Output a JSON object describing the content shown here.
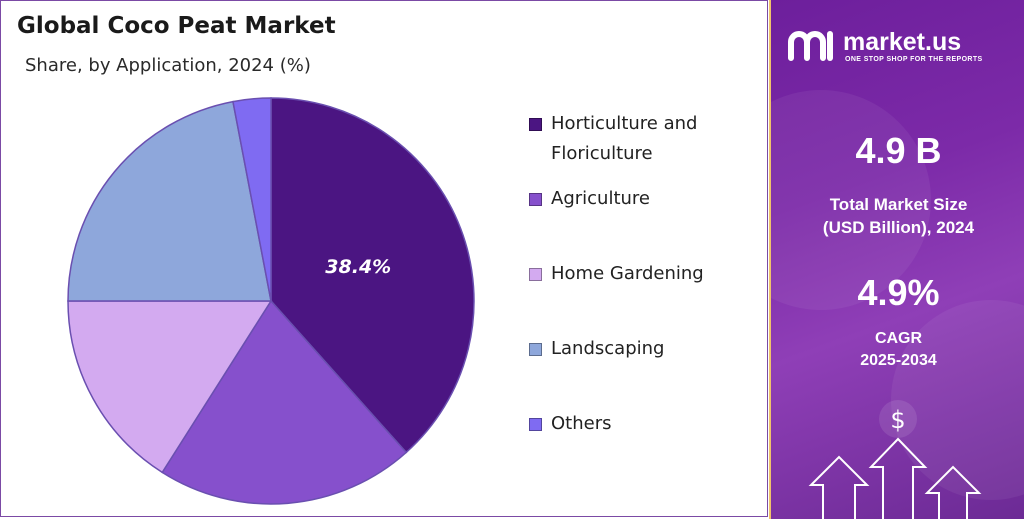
{
  "title": "Global Coco Peat Market",
  "subtitle": "Share, by Application, 2024 (%)",
  "chart_data": {
    "type": "pie",
    "title": "Global Coco Peat Market",
    "subtitle": "Share, by Application, 2024 (%)",
    "legend_position": "right",
    "slices": [
      {
        "name": "Horticulture and Floriculture",
        "value": 38.4,
        "color": "#4b1582",
        "label": "38.4%"
      },
      {
        "name": "Agriculture",
        "value": 20.6,
        "color": "#8650cc",
        "label": ""
      },
      {
        "name": "Home Gardening",
        "value": 16.0,
        "color": "#d3aaf0",
        "label": ""
      },
      {
        "name": "Landscaping",
        "value": 22.0,
        "color": "#8ea7db",
        "label": ""
      },
      {
        "name": "Others",
        "value": 3.0,
        "color": "#7f6bf2",
        "label": ""
      }
    ]
  },
  "sidebar": {
    "brand_name": "market.us",
    "brand_tagline": "ONE STOP SHOP FOR THE REPORTS",
    "market_size_value": "4.9 B",
    "market_size_caption_1": "Total Market Size",
    "market_size_caption_2": "(USD Billion), 2024",
    "cagr_value": "4.9%",
    "cagr_caption_1": "CAGR",
    "cagr_caption_2": "2025-2034",
    "dollar_symbol": "$",
    "icons": [
      "brand-logo-icon",
      "arrow-up-icon",
      "dollar-icon"
    ]
  }
}
